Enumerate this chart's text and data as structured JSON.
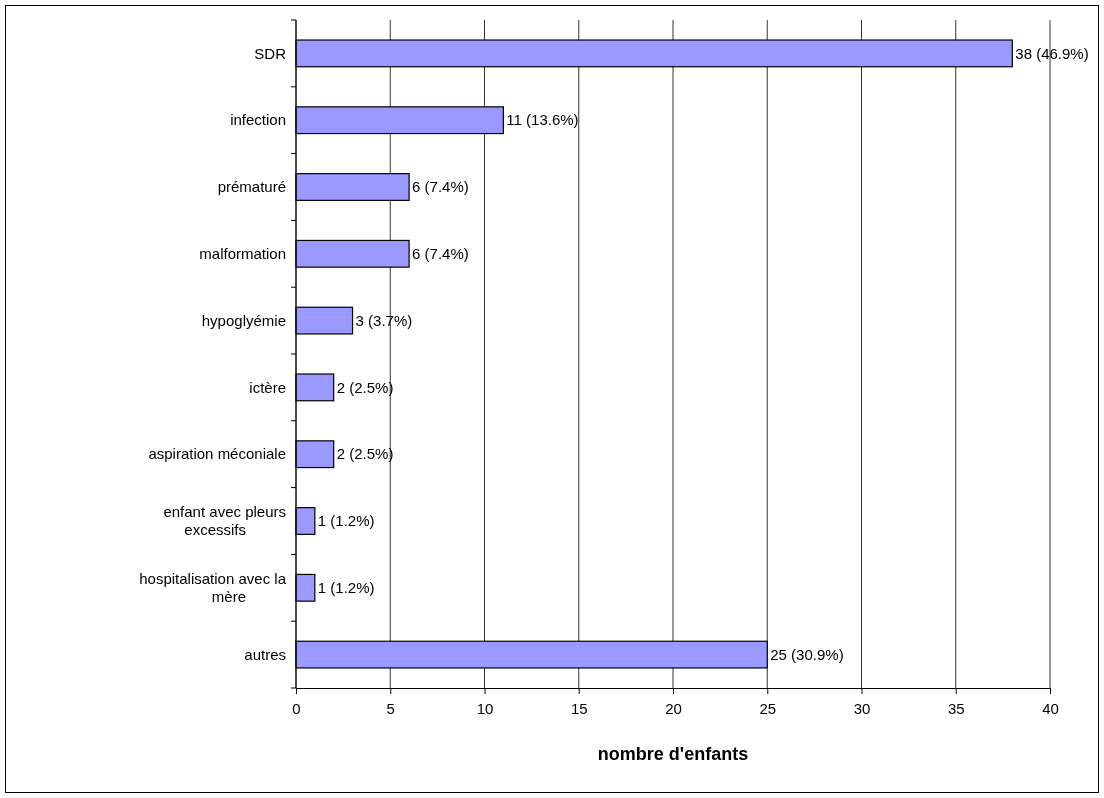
{
  "chart_data": {
    "type": "bar",
    "orientation": "horizontal",
    "xlabel": "nombre d'enfants",
    "categories": [
      "SDR",
      "infection",
      "prématuré",
      "malformation",
      "hypoglyémie",
      "ictère",
      "aspiration méconiale",
      "enfant avec pleurs excessifs",
      "hospitalisation avec la mère",
      "autres"
    ],
    "values": [
      38,
      11,
      6,
      6,
      3,
      2,
      2,
      1,
      1,
      25
    ],
    "value_labels": [
      "38 (46.9%)",
      "11 (13.6%)",
      "6 (7.4%)",
      "6 (7.4%)",
      "3 (3.7%)",
      "2 (2.5%)",
      "2 (2.5%)",
      "1 (1.2%)",
      "1 (1.2%)",
      "25 (30.9%)"
    ],
    "color": "#9999ff",
    "xlim": [
      0,
      40
    ],
    "xticks": [
      0,
      5,
      10,
      15,
      20,
      25,
      30,
      35,
      40
    ],
    "grid": "x"
  }
}
